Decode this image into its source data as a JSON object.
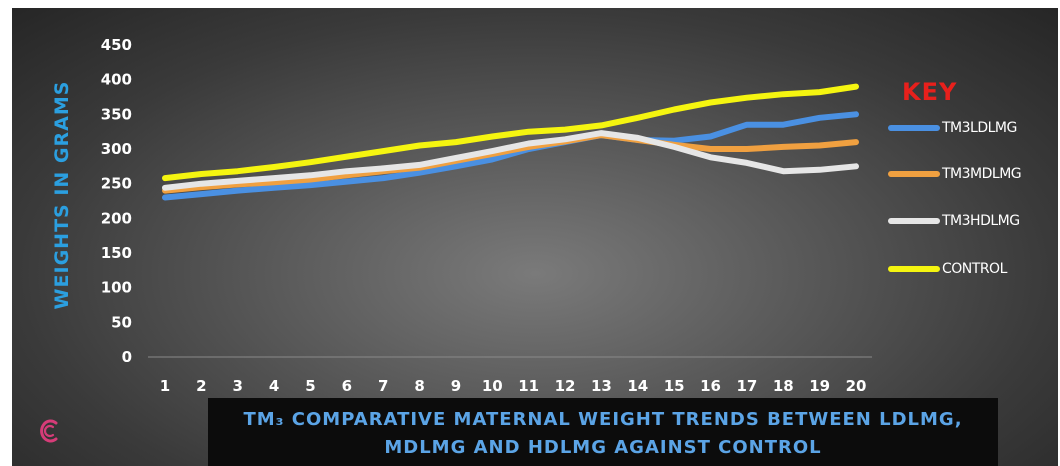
{
  "chart_data": {
    "type": "line",
    "title": "TM₃ COMPARATIVE MATERNAL WEIGHT TRENDS BETWEEN LDLMG, MDLMG AND HDLMG AGAINST CONTROL",
    "xlabel": "",
    "ylabel": "WEIGHTS IN GRAMS",
    "ylim": [
      0,
      450
    ],
    "yticks": [
      "0",
      "50",
      "100",
      "150",
      "200",
      "250",
      "300",
      "350",
      "400",
      "450"
    ],
    "categories": [
      "1",
      "2",
      "3",
      "4",
      "5",
      "6",
      "7",
      "8",
      "9",
      "10",
      "11",
      "12",
      "13",
      "14",
      "15",
      "16",
      "17",
      "18",
      "19",
      "20"
    ],
    "grid": false,
    "legend_title": "KEY",
    "legend_position": "right",
    "series": [
      {
        "name": "TM3LDLMG",
        "color": "#4a90e2",
        "values": [
          230,
          235,
          240,
          244,
          248,
          253,
          258,
          266,
          275,
          285,
          300,
          310,
          320,
          313,
          312,
          318,
          335,
          335,
          345,
          350
        ]
      },
      {
        "name": "TM3MDLMG",
        "color": "#f0a040",
        "values": [
          240,
          245,
          249,
          252,
          256,
          262,
          268,
          273,
          283,
          293,
          303,
          311,
          320,
          313,
          306,
          300,
          300,
          303,
          305,
          310
        ]
      },
      {
        "name": "TM3HDLMG",
        "color": "#e6e6e6",
        "values": [
          244,
          250,
          254,
          258,
          262,
          268,
          272,
          277,
          287,
          297,
          308,
          314,
          323,
          316,
          303,
          288,
          280,
          268,
          270,
          275
        ]
      },
      {
        "name": "CONTROL",
        "color": "#f5f510",
        "values": [
          258,
          264,
          268,
          274,
          281,
          289,
          297,
          305,
          310,
          318,
          325,
          328,
          334,
          345,
          357,
          367,
          374,
          379,
          382,
          390
        ]
      }
    ]
  },
  "colors": {
    "panel": "#3a3a3a",
    "title_box": "#0c0c0c",
    "title_text": "#5ba4e6",
    "ylabel": "#2b9fe0",
    "key_title": "#e8201c",
    "logo": "#d63c78"
  },
  "icons": {
    "logo": "c-logo-icon"
  }
}
